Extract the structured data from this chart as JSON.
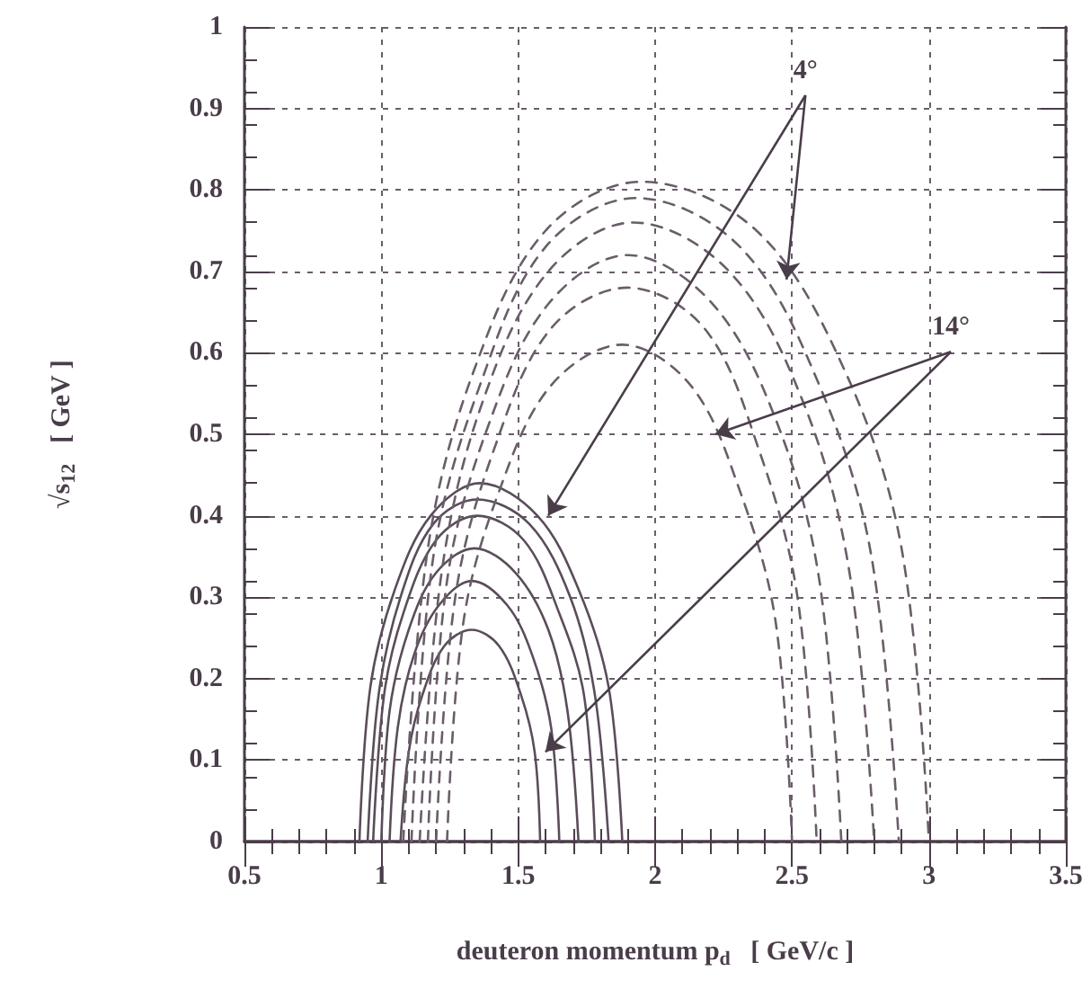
{
  "chart_data": {
    "type": "line",
    "xlabel": "deuteron momentum p$_{d}$   [ GeV/c ]",
    "ylabel": "√s$_{12}$   [ GeV ]",
    "xlim": [
      0.5,
      3.5
    ],
    "xticks": [
      0.5,
      1,
      1.5,
      2,
      2.5,
      3,
      3.5
    ],
    "ylim": [
      0,
      1
    ],
    "yticks": [
      0,
      0.1,
      0.2,
      0.3,
      0.4,
      0.5,
      0.6,
      0.7,
      0.8,
      0.9,
      1
    ],
    "grid": true,
    "marker": "none",
    "annotations": [
      {
        "text": "4°",
        "x": 2.48,
        "y": 0.69
      },
      {
        "text": "14°",
        "x": 2.22,
        "y": 0.5
      }
    ],
    "series": [
      {
        "color": "#5a4d5a",
        "line_style": "solid",
        "x": [
          0.92,
          0.96,
          1.05,
          1.18,
          1.36,
          1.57,
          1.72,
          1.83,
          1.88
        ],
        "values": [
          0,
          0.19,
          0.31,
          0.4,
          0.44,
          0.4,
          0.31,
          0.19,
          0
        ]
      },
      {
        "color": "#5a4d5a",
        "line_style": "solid",
        "x": [
          0.95,
          0.99,
          1.07,
          1.19,
          1.35,
          1.54,
          1.69,
          1.78,
          1.83
        ],
        "values": [
          0,
          0.18,
          0.3,
          0.39,
          0.42,
          0.39,
          0.3,
          0.18,
          0
        ]
      },
      {
        "color": "#5a4d5a",
        "line_style": "solid",
        "x": [
          0.97,
          1.01,
          1.08,
          1.2,
          1.35,
          1.52,
          1.65,
          1.74,
          1.78
        ],
        "values": [
          0,
          0.18,
          0.28,
          0.37,
          0.4,
          0.37,
          0.28,
          0.18,
          0
        ]
      },
      {
        "color": "#5a4d5a",
        "line_style": "solid",
        "x": [
          1.0,
          1.03,
          1.1,
          1.2,
          1.34,
          1.49,
          1.61,
          1.68,
          1.72
        ],
        "values": [
          0,
          0.16,
          0.26,
          0.33,
          0.36,
          0.33,
          0.26,
          0.16,
          0
        ]
      },
      {
        "color": "#5a4d5a",
        "line_style": "solid",
        "x": [
          1.03,
          1.06,
          1.12,
          1.21,
          1.33,
          1.46,
          1.55,
          1.62,
          1.65
        ],
        "values": [
          0,
          0.14,
          0.23,
          0.29,
          0.32,
          0.29,
          0.23,
          0.14,
          0
        ]
      },
      {
        "color": "#5a4d5a",
        "line_style": "solid",
        "x": [
          1.07,
          1.1,
          1.15,
          1.23,
          1.33,
          1.43,
          1.51,
          1.56,
          1.58
        ],
        "values": [
          0,
          0.11,
          0.18,
          0.24,
          0.26,
          0.24,
          0.18,
          0.11,
          0
        ]
      },
      {
        "color": "#6a5d6a",
        "line_style": "dashed",
        "x": [
          1.08,
          1.17,
          1.34,
          1.6,
          1.95,
          2.37,
          2.69,
          2.9,
          3.0
        ],
        "values": [
          0,
          0.36,
          0.58,
          0.75,
          0.81,
          0.75,
          0.58,
          0.36,
          0
        ]
      },
      {
        "color": "#6a5d6a",
        "line_style": "dashed",
        "x": [
          1.11,
          1.19,
          1.36,
          1.6,
          1.93,
          2.31,
          2.6,
          2.79,
          2.89
        ],
        "values": [
          0,
          0.35,
          0.56,
          0.73,
          0.79,
          0.73,
          0.56,
          0.35,
          0
        ]
      },
      {
        "color": "#6a5d6a",
        "line_style": "dashed",
        "x": [
          1.14,
          1.22,
          1.37,
          1.61,
          1.92,
          2.27,
          2.54,
          2.71,
          2.8
        ],
        "values": [
          0,
          0.33,
          0.54,
          0.7,
          0.76,
          0.7,
          0.54,
          0.33,
          0
        ]
      },
      {
        "color": "#6a5d6a",
        "line_style": "dashed",
        "x": [
          1.17,
          1.24,
          1.39,
          1.61,
          1.9,
          2.21,
          2.45,
          2.6,
          2.68
        ],
        "values": [
          0,
          0.32,
          0.51,
          0.66,
          0.72,
          0.66,
          0.51,
          0.32,
          0
        ]
      },
      {
        "color": "#6a5d6a",
        "line_style": "dashed",
        "x": [
          1.2,
          1.27,
          1.41,
          1.62,
          1.9,
          2.18,
          2.38,
          2.52,
          2.59
        ],
        "values": [
          0,
          0.3,
          0.48,
          0.63,
          0.68,
          0.63,
          0.48,
          0.3,
          0
        ]
      },
      {
        "color": "#6a5d6a",
        "line_style": "dashed",
        "x": [
          1.24,
          1.3,
          1.43,
          1.62,
          1.88,
          2.13,
          2.31,
          2.44,
          2.5
        ],
        "values": [
          0,
          0.27,
          0.43,
          0.56,
          0.61,
          0.56,
          0.43,
          0.27,
          0
        ]
      }
    ]
  }
}
